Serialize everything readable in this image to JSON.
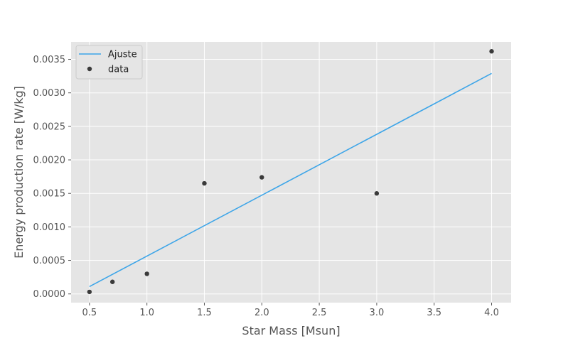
{
  "chart_data": {
    "type": "scatter",
    "title": "",
    "xlabel": "Star Mass [Msun]",
    "ylabel": "Energy production rate [W/kg]",
    "xlim": [
      0.34,
      4.17
    ],
    "ylim": [
      -0.00013,
      0.00376
    ],
    "xticks": [
      "0.5",
      "1.0",
      "1.5",
      "2.0",
      "2.5",
      "3.0",
      "3.5",
      "4.0"
    ],
    "yticks": [
      "0.0000",
      "0.0005",
      "0.0010",
      "0.0015",
      "0.0020",
      "0.0025",
      "0.0030",
      "0.0035"
    ],
    "grid": true,
    "legend_position": "top-left",
    "series": [
      {
        "name": "Ajuste",
        "kind": "line",
        "color": "#3da5e8",
        "x": [
          0.5,
          4.0
        ],
        "y": [
          0.00011,
          0.00329
        ]
      },
      {
        "name": "data",
        "kind": "scatter",
        "color": "#3a3a3a",
        "x": [
          0.5,
          0.7,
          1.0,
          1.5,
          2.0,
          3.0,
          4.0
        ],
        "y": [
          3e-05,
          0.00018,
          0.0003,
          0.00165,
          0.00174,
          0.0015,
          0.00362
        ]
      }
    ]
  },
  "colors": {
    "plot_background": "#e5e5e5",
    "grid": "#ffffff",
    "fit_line": "#3da5e8",
    "data_points": "#3a3a3a"
  }
}
